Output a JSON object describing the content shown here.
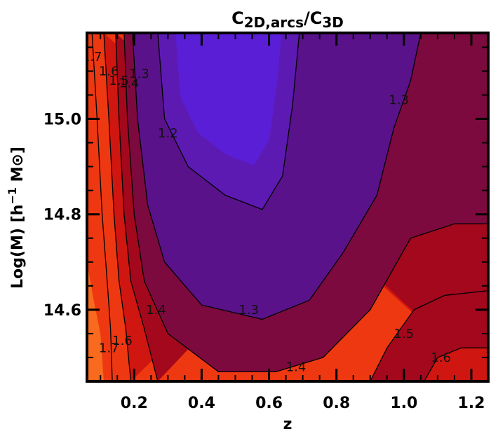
{
  "chart_data": {
    "type": "heatmap",
    "title": {
      "main": "C",
      "sub1": "2D,arcs",
      "slash": "/C",
      "sub2": "3D"
    },
    "xlabel": "z",
    "ylabel": {
      "prefix": "Log(M)  [h",
      "exp": "−1",
      "suffix": " M⊙]"
    },
    "xlim": [
      0.06,
      1.25
    ],
    "ylim": [
      14.45,
      15.18
    ],
    "x_ticks": [
      {
        "value": 0.2,
        "label": "0.2"
      },
      {
        "value": 0.4,
        "label": "0.4"
      },
      {
        "value": 0.6,
        "label": "0.6"
      },
      {
        "value": 0.8,
        "label": "0.8"
      },
      {
        "value": 1.0,
        "label": "1.0"
      },
      {
        "value": 1.2,
        "label": "1.2"
      }
    ],
    "y_ticks": [
      {
        "value": 14.6,
        "label": "14.6"
      },
      {
        "value": 14.8,
        "label": "14.8"
      },
      {
        "value": 15.0,
        "label": "15.0"
      }
    ],
    "x_minor": [
      0.1,
      0.15,
      0.25,
      0.3,
      0.35,
      0.45,
      0.5,
      0.55,
      0.65,
      0.7,
      0.75,
      0.85,
      0.9,
      0.95,
      1.05,
      1.1,
      1.15
    ],
    "y_minor": [
      14.5,
      14.55,
      14.65,
      14.7,
      14.75,
      14.85,
      14.9,
      14.95,
      15.05,
      15.1,
      15.15
    ],
    "levels": [
      1.2,
      1.3,
      1.4,
      1.5,
      1.6,
      1.7
    ],
    "colors": {
      "1.1": "#5a1ed6",
      "1.2": "#5c1ab3",
      "1.3": "#5a128a",
      "1.4": "#7c0a3e",
      "1.5": "#a3081c",
      "1.6": "#d01610",
      "1.7": "#ee3812",
      "1.8": "#f86a1e"
    },
    "contours": [
      {
        "level": 1.2,
        "points": [
          [
            0.27,
            15.18
          ],
          [
            0.29,
            15.0
          ],
          [
            0.36,
            14.9
          ],
          [
            0.47,
            14.84
          ],
          [
            0.58,
            14.81
          ],
          [
            0.64,
            14.88
          ],
          [
            0.67,
            15.03
          ],
          [
            0.69,
            15.18
          ]
        ]
      },
      {
        "level": 1.3,
        "points": [
          [
            0.195,
            15.18
          ],
          [
            0.21,
            15.0
          ],
          [
            0.24,
            14.82
          ],
          [
            0.29,
            14.7
          ],
          [
            0.4,
            14.61
          ],
          [
            0.58,
            14.58
          ],
          [
            0.72,
            14.62
          ],
          [
            0.82,
            14.72
          ],
          [
            0.92,
            14.84
          ],
          [
            0.97,
            14.98
          ],
          [
            1.02,
            15.08
          ],
          [
            1.05,
            15.18
          ]
        ]
      },
      {
        "level": 1.4,
        "points": [
          [
            0.17,
            15.18
          ],
          [
            0.18,
            15.0
          ],
          [
            0.2,
            14.8
          ],
          [
            0.23,
            14.66
          ],
          [
            0.3,
            14.55
          ],
          [
            0.45,
            14.47
          ],
          [
            0.62,
            14.47
          ],
          [
            0.76,
            14.5
          ],
          [
            0.9,
            14.6
          ],
          [
            1.02,
            14.75
          ],
          [
            1.15,
            14.78
          ],
          [
            1.25,
            14.78
          ]
        ]
      },
      {
        "level": 1.5,
        "points": [
          [
            0.145,
            15.18
          ],
          [
            0.155,
            15.0
          ],
          [
            0.17,
            14.8
          ],
          [
            0.19,
            14.66
          ],
          [
            0.23,
            14.56
          ],
          [
            0.27,
            14.45
          ]
        ]
      },
      {
        "level": 1.5,
        "points": [
          [
            0.9,
            14.45
          ],
          [
            0.95,
            14.52
          ],
          [
            1.03,
            14.6
          ],
          [
            1.12,
            14.63
          ],
          [
            1.25,
            14.64
          ]
        ]
      },
      {
        "level": 1.6,
        "points": [
          [
            0.11,
            15.18
          ],
          [
            0.125,
            15.0
          ],
          [
            0.14,
            14.8
          ],
          [
            0.155,
            14.66
          ],
          [
            0.175,
            14.56
          ],
          [
            0.19,
            14.45
          ]
        ]
      },
      {
        "level": 1.6,
        "points": [
          [
            1.06,
            14.45
          ],
          [
            1.1,
            14.5
          ],
          [
            1.17,
            14.52
          ],
          [
            1.25,
            14.52
          ]
        ]
      },
      {
        "level": 1.7,
        "points": [
          [
            0.075,
            15.18
          ],
          [
            0.09,
            15.0
          ],
          [
            0.105,
            14.8
          ],
          [
            0.12,
            14.66
          ],
          [
            0.13,
            14.56
          ],
          [
            0.135,
            14.45
          ]
        ]
      }
    ],
    "regions": [
      {
        "level": 1.8,
        "points": [
          [
            0.06,
            14.7
          ],
          [
            0.08,
            14.62
          ],
          [
            0.1,
            14.55
          ],
          [
            0.11,
            14.45
          ],
          [
            0.06,
            14.45
          ]
        ]
      }
    ],
    "contour_labels": [
      {
        "text": "1.7",
        "x": 0.075,
        "y": 15.13
      },
      {
        "text": "1.6",
        "x": 0.125,
        "y": 15.1
      },
      {
        "text": "1.5",
        "x": 0.155,
        "y": 15.08
      },
      {
        "text": "1.4",
        "x": 0.185,
        "y": 15.075
      },
      {
        "text": "1.3",
        "x": 0.215,
        "y": 15.095
      },
      {
        "text": "1.3",
        "x": 0.985,
        "y": 15.04
      },
      {
        "text": "1.2",
        "x": 0.3,
        "y": 14.97
      },
      {
        "text": "1.3",
        "x": 0.54,
        "y": 14.6
      },
      {
        "text": "1.4",
        "x": 0.265,
        "y": 14.6
      },
      {
        "text": "1.7",
        "x": 0.125,
        "y": 14.52
      },
      {
        "text": "1.6",
        "x": 0.165,
        "y": 14.535
      },
      {
        "text": "1.4",
        "x": 0.68,
        "y": 14.48
      },
      {
        "text": "1.5",
        "x": 1.0,
        "y": 14.55
      },
      {
        "text": "1.6",
        "x": 1.11,
        "y": 14.5
      }
    ]
  }
}
